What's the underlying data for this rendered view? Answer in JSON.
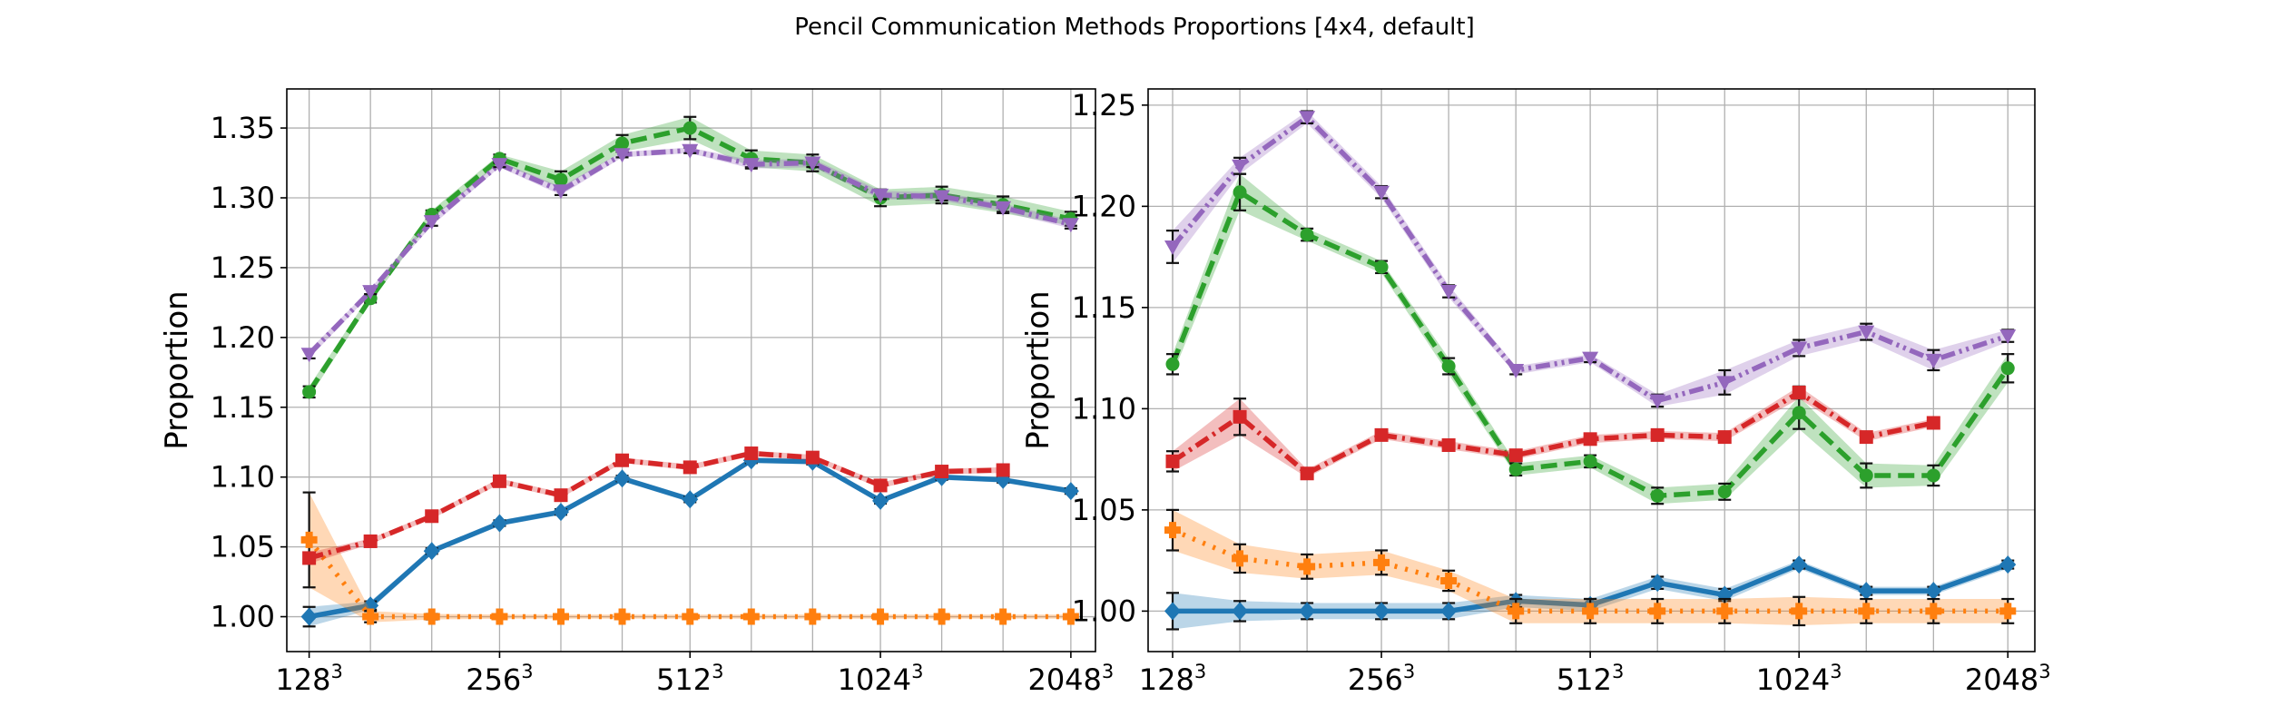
{
  "figure": {
    "title": "Pencil Communication Methods Proportions [4x4, default]"
  },
  "chart_data": [
    {
      "type": "line",
      "title": "",
      "xlabel": "",
      "ylabel": "Proportion",
      "x_scale": "log2",
      "x_ticks": [
        {
          "value": 128,
          "base": "128",
          "exp": "3"
        },
        {
          "value": 256,
          "base": "256",
          "exp": "3"
        },
        {
          "value": 512,
          "base": "512",
          "exp": "3"
        },
        {
          "value": 1024,
          "base": "1024",
          "exp": "3"
        },
        {
          "value": 2048,
          "base": "2048",
          "exp": "3"
        }
      ],
      "x_minor": [
        160,
        200,
        320,
        400,
        640,
        800,
        1280,
        1600
      ],
      "xlim": [
        118,
        2240
      ],
      "ylim": [
        0.975,
        1.378
      ],
      "y_ticks": [
        "1.00",
        "1.05",
        "1.10",
        "1.15",
        "1.20",
        "1.25",
        "1.30",
        "1.35"
      ],
      "grid": true,
      "x": [
        128,
        160,
        200,
        256,
        320,
        400,
        512,
        640,
        800,
        1024,
        1280,
        1600,
        2048
      ],
      "series": [
        {
          "color": "#1f77b4",
          "dash": "solid",
          "marker": "diamond",
          "values": [
            1.0,
            1.008,
            1.047,
            1.067,
            1.075,
            1.099,
            1.084,
            1.112,
            1.111,
            1.083,
            1.1,
            1.098,
            1.09
          ],
          "err": [
            0.007,
            0.003,
            0.002,
            0.002,
            0.002,
            0.002,
            0.002,
            0.002,
            0.002,
            0.002,
            0.002,
            0.002,
            0.002
          ]
        },
        {
          "color": "#ff7f0e",
          "dash": "dotted",
          "marker": "plus",
          "values": [
            1.055,
            1.0,
            1.0,
            1.0,
            1.0,
            1.0,
            1.0,
            1.0,
            1.0,
            1.0,
            1.0,
            1.0,
            1.0
          ],
          "err": [
            0.034,
            0.004,
            0.002,
            0.001,
            0.001,
            0.001,
            0.001,
            0.001,
            0.001,
            0.001,
            0.001,
            0.001,
            0.001
          ]
        },
        {
          "color": "#2ca02c",
          "dash": "dashed",
          "marker": "circle",
          "values": [
            1.161,
            1.228,
            1.288,
            1.328,
            1.313,
            1.339,
            1.35,
            1.328,
            1.325,
            1.3,
            1.302,
            1.295,
            1.285
          ],
          "err": [
            0.004,
            0.003,
            0.003,
            0.003,
            0.006,
            0.006,
            0.008,
            0.006,
            0.006,
            0.006,
            0.006,
            0.006,
            0.005
          ]
        },
        {
          "color": "#d62728",
          "dash": "dashdot",
          "marker": "square",
          "values": [
            1.042,
            1.054,
            1.072,
            1.097,
            1.087,
            1.112,
            1.107,
            1.117,
            1.114,
            1.094,
            1.104,
            1.105,
            null
          ],
          "err": [
            0.004,
            0.002,
            0.002,
            0.002,
            0.002,
            0.002,
            0.002,
            0.002,
            0.002,
            0.002,
            0.002,
            0.002,
            0
          ]
        },
        {
          "color": "#9467bd",
          "dash": "dashdotdot",
          "marker": "triangle-down",
          "values": [
            1.188,
            1.233,
            1.283,
            1.324,
            1.305,
            1.331,
            1.334,
            1.324,
            1.325,
            1.302,
            1.301,
            1.293,
            1.281
          ],
          "err": [
            0.003,
            0.002,
            0.003,
            0.002,
            0.003,
            0.002,
            0.002,
            0.003,
            0.003,
            0.003,
            0.003,
            0.003,
            0.003
          ]
        }
      ]
    },
    {
      "type": "line",
      "title": "",
      "xlabel": "",
      "ylabel": "Proportion",
      "x_scale": "log2",
      "x_ticks": [
        {
          "value": 128,
          "base": "128",
          "exp": "3"
        },
        {
          "value": 256,
          "base": "256",
          "exp": "3"
        },
        {
          "value": 512,
          "base": "512",
          "exp": "3"
        },
        {
          "value": 1024,
          "base": "1024",
          "exp": "3"
        },
        {
          "value": 2048,
          "base": "2048",
          "exp": "3"
        }
      ],
      "x_minor": [
        160,
        200,
        320,
        400,
        640,
        800,
        1280,
        1600
      ],
      "xlim": [
        118,
        2240
      ],
      "ylim": [
        0.98,
        1.258
      ],
      "y_ticks": [
        "1.00",
        "1.05",
        "1.10",
        "1.15",
        "1.20",
        "1.25"
      ],
      "grid": true,
      "x": [
        128,
        160,
        200,
        256,
        320,
        400,
        512,
        640,
        800,
        1024,
        1280,
        1600,
        2048
      ],
      "series": [
        {
          "color": "#1f77b4",
          "dash": "solid",
          "marker": "diamond",
          "values": [
            1.0,
            1.0,
            1.0,
            1.0,
            1.0,
            1.005,
            1.003,
            1.014,
            1.008,
            1.023,
            1.01,
            1.01,
            1.023
          ],
          "err": [
            0.009,
            0.005,
            0.004,
            0.004,
            0.004,
            0.003,
            0.003,
            0.003,
            0.003,
            0.002,
            0.002,
            0.002,
            0.002
          ]
        },
        {
          "color": "#ff7f0e",
          "dash": "dotted",
          "marker": "plus",
          "values": [
            1.04,
            1.026,
            1.022,
            1.024,
            1.015,
            1.0,
            1.0,
            1.0,
            1.0,
            1.0,
            1.0,
            1.0,
            1.0
          ],
          "err": [
            0.01,
            0.007,
            0.006,
            0.006,
            0.005,
            0.006,
            0.006,
            0.006,
            0.006,
            0.007,
            0.006,
            0.006,
            0.006
          ]
        },
        {
          "color": "#2ca02c",
          "dash": "dashed",
          "marker": "circle",
          "values": [
            1.122,
            1.207,
            1.186,
            1.17,
            1.121,
            1.07,
            1.074,
            1.057,
            1.059,
            1.098,
            1.067,
            1.067,
            1.12
          ],
          "err": [
            0.005,
            0.009,
            0.003,
            0.003,
            0.004,
            0.003,
            0.003,
            0.004,
            0.004,
            0.008,
            0.006,
            0.005,
            0.007
          ]
        },
        {
          "color": "#d62728",
          "dash": "dashdot",
          "marker": "square",
          "values": [
            1.074,
            1.096,
            1.068,
            1.087,
            1.082,
            1.077,
            1.085,
            1.087,
            1.086,
            1.108,
            1.086,
            1.093,
            null
          ],
          "err": [
            0.005,
            0.009,
            0.002,
            0.002,
            0.002,
            0.002,
            0.002,
            0.002,
            0.002,
            0.003,
            0.002,
            0.002,
            0
          ]
        },
        {
          "color": "#9467bd",
          "dash": "dashdotdot",
          "marker": "triangle-down",
          "values": [
            1.18,
            1.22,
            1.244,
            1.207,
            1.158,
            1.119,
            1.125,
            1.104,
            1.113,
            1.13,
            1.138,
            1.124,
            1.136
          ],
          "err": [
            0.008,
            0.004,
            0.003,
            0.003,
            0.003,
            0.002,
            0.002,
            0.003,
            0.006,
            0.004,
            0.004,
            0.005,
            0.003
          ]
        }
      ]
    }
  ]
}
